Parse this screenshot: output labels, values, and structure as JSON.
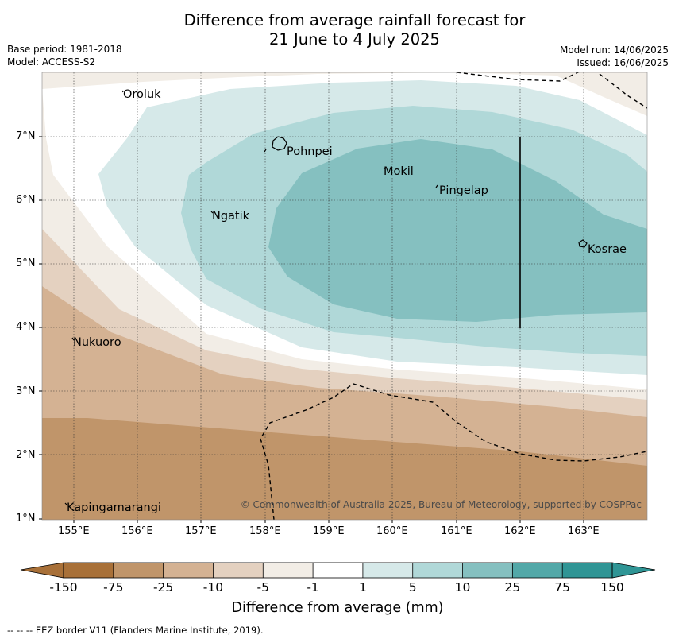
{
  "title": {
    "line1": "Difference from average rainfall forecast for",
    "line2": "21 June to 4 July 2025"
  },
  "meta": {
    "base_period": "Base period: 1981-2018",
    "model": "Model: ACCESS-S2",
    "model_run": "Model run: 14/06/2025",
    "issued": "Issued: 16/06/2025"
  },
  "map": {
    "latitude_ticks": [
      "7°N",
      "6°N",
      "5°N",
      "4°N",
      "3°N",
      "2°N",
      "1°N"
    ],
    "longitude_ticks": [
      "155°E",
      "156°E",
      "157°E",
      "158°E",
      "159°E",
      "160°E",
      "161°E",
      "162°E",
      "163°E"
    ],
    "places": [
      "Oroluk",
      "Pohnpei",
      "Mokil",
      "Pingelap",
      "Ngatik",
      "Kosrae",
      "Nukuoro",
      "Kapingamarangi"
    ],
    "copyright": "© Commonwealth of Australia 2025, Bureau of Meteorology, supported by COSPPac"
  },
  "colorbar": {
    "labels": [
      "-150",
      "-75",
      "-25",
      "-10",
      "-5",
      "-1",
      "1",
      "5",
      "10",
      "25",
      "75",
      "150"
    ],
    "colors": [
      "#a87038",
      "#c0956a",
      "#d4b293",
      "#e4d1c0",
      "#f2ede6",
      "#ffffff",
      "#d6e9e9",
      "#b0d8d8",
      "#85c0c0",
      "#52a8a8",
      "#2f9595"
    ],
    "title": "Difference from average (mm)"
  },
  "footer": {
    "legend": "-- -- -- EEZ border V11 (Flanders Marine Institute, 2019)."
  }
}
